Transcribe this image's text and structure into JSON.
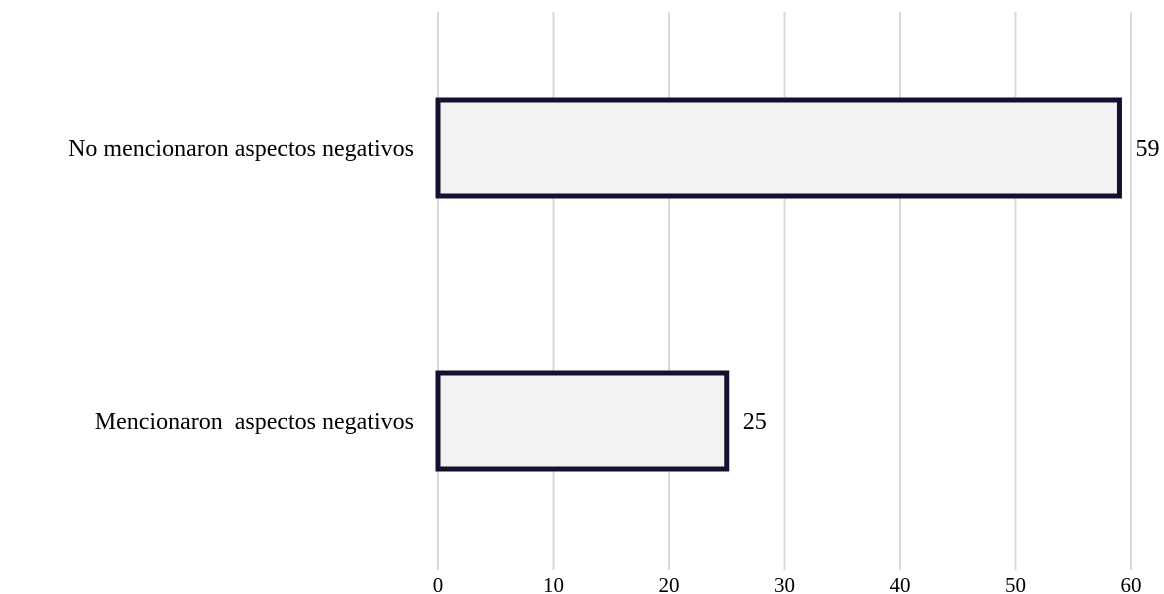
{
  "chart_data": {
    "type": "bar",
    "orientation": "horizontal",
    "categories": [
      "No mencionaron aspectos negativos",
      "Mencionaron  aspectos negativos"
    ],
    "values": [
      59,
      25
    ],
    "data_labels": [
      "59",
      "25"
    ],
    "title": "",
    "xlabel": "",
    "ylabel": "",
    "xlim": [
      0,
      60
    ],
    "xticks": [
      0,
      10,
      20,
      30,
      40,
      50,
      60
    ],
    "xtick_labels": [
      "0",
      "10",
      "20",
      "30",
      "40",
      "50",
      "60"
    ],
    "grid": true,
    "legend": "none",
    "colors": {
      "bar_fill": "#f2f2f2",
      "bar_border": "#14102f",
      "gridline": "#d9d9d9",
      "text": "#000000"
    }
  }
}
